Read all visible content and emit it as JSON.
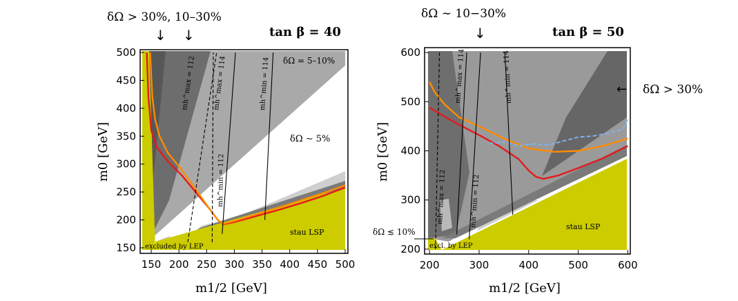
{
  "chart_data": [
    {
      "type": "contour",
      "panel": "left",
      "title": "tan β = 40",
      "xlabel": "m1/2 [GeV]",
      "ylabel": "m0 [GeV]",
      "xlim": [
        130,
        505
      ],
      "ylim": [
        140,
        505
      ],
      "xticks": [
        150,
        200,
        250,
        300,
        350,
        400,
        450,
        500
      ],
      "yticks": [
        150,
        200,
        250,
        300,
        350,
        400,
        450,
        500
      ],
      "annotations": {
        "top": "δΩ > 30%, 10–30%",
        "upper_right": "δΩ = 5–10%",
        "middle": "δΩ ∼ 5%",
        "lsp": "stau LSP",
        "lep": "excluded by LEP"
      },
      "contour_labels": [
        "mh^max = 112",
        "mh^max = 114",
        "mh^min = 114",
        "mh^min = 112"
      ],
      "series": [
        {
          "name": "red",
          "color": "#e41a1c",
          "x": [
            142,
            145,
            150,
            160,
            180,
            205,
            230,
            255,
            270,
            280,
            300,
            340,
            380,
            420,
            460,
            500
          ],
          "y": [
            500,
            420,
            360,
            330,
            305,
            280,
            250,
            220,
            200,
            192,
            196,
            207,
            218,
            230,
            243,
            258
          ]
        },
        {
          "name": "orange",
          "color": "#ff8c00",
          "x": [
            148,
            152,
            157,
            165,
            180,
            205,
            230,
            255,
            270,
            280,
            300,
            340,
            380,
            420,
            460,
            500
          ],
          "y": [
            500,
            420,
            380,
            350,
            320,
            290,
            255,
            220,
            200,
            193,
            198,
            210,
            222,
            235,
            248,
            262
          ]
        }
      ],
      "regions": {
        "stau_lsp_edge": {
          "x": [
            140,
            500
          ],
          "y": [
            150,
            262
          ]
        },
        "lep_edge_x": 157
      },
      "mh_lines": [
        {
          "name": "mh^max = 112",
          "style": "dashed",
          "x": [
            216,
            268
          ],
          "y": [
            160,
            500
          ]
        },
        {
          "name": "mh^max = 114",
          "style": "solid",
          "x": [
            278,
            302
          ],
          "y": [
            175,
            500
          ]
        },
        {
          "name": "mh^min = 112",
          "style": "dashed",
          "x": [
            260,
            262
          ],
          "y": [
            160,
            500
          ]
        },
        {
          "name": "mh^min = 114",
          "style": "solid",
          "x": [
            355,
            370
          ],
          "y": [
            200,
            500
          ]
        }
      ]
    },
    {
      "type": "contour",
      "panel": "right",
      "title": "tan β = 50",
      "xlabel": "m1/2 [GeV]",
      "ylabel": "m0 [GeV]",
      "xlim": [
        190,
        605
      ],
      "ylim": [
        190,
        610
      ],
      "xticks": [
        200,
        300,
        400,
        500,
        600
      ],
      "yticks": [
        200,
        300,
        400,
        500,
        600
      ],
      "annotations": {
        "top": "δΩ ∼ 10−30%",
        "right": "δΩ > 30%",
        "left": "δΩ ≲ 10%",
        "lsp": "stau LSP",
        "lep": "excl. by LEP"
      },
      "contour_labels": [
        "mh^max = 114",
        "mh^min = 114",
        "mh^max = 112",
        "mh^min = 112"
      ],
      "series": [
        {
          "name": "orange",
          "color": "#ff8c00",
          "x": [
            200,
            210,
            230,
            260,
            300,
            350,
            400,
            450,
            500,
            550,
            600
          ],
          "y": [
            540,
            520,
            495,
            468,
            450,
            425,
            405,
            398,
            400,
            410,
            425
          ]
        },
        {
          "name": "red",
          "color": "#e41a1c",
          "x": [
            200,
            230,
            260,
            300,
            340,
            380,
            400,
            415,
            430,
            460,
            500,
            550,
            600
          ],
          "y": [
            488,
            470,
            453,
            432,
            410,
            383,
            360,
            347,
            343,
            350,
            365,
            385,
            410
          ]
        },
        {
          "name": "blue dashed",
          "color": "#7fb2ee",
          "x": [
            320,
            350,
            380,
            410,
            440,
            470,
            500,
            530,
            560,
            590,
            600
          ],
          "y": [
            415,
            418,
            410,
            414,
            412,
            420,
            428,
            430,
            436,
            444,
            465
          ]
        }
      ],
      "regions": {
        "stau_lsp_edge": {
          "x": [
            200,
            600
          ],
          "y": [
            200,
            390
          ]
        },
        "lep_edge_x": 212
      },
      "mh_lines": [
        {
          "name": "mh^max = 112",
          "style": "dashed",
          "x": [
            212,
            220
          ],
          "y": [
            200,
            600
          ]
        },
        {
          "name": "mh^max = 114",
          "style": "solid",
          "x": [
            255,
            275
          ],
          "y": [
            230,
            600
          ]
        },
        {
          "name": "mh^min = 112",
          "style": "solid",
          "x": [
            280,
            303
          ],
          "y": [
            220,
            600
          ]
        },
        {
          "name": "mh^min = 114",
          "style": "solid",
          "x": [
            368,
            352
          ],
          "y": [
            270,
            600
          ]
        }
      ]
    }
  ]
}
